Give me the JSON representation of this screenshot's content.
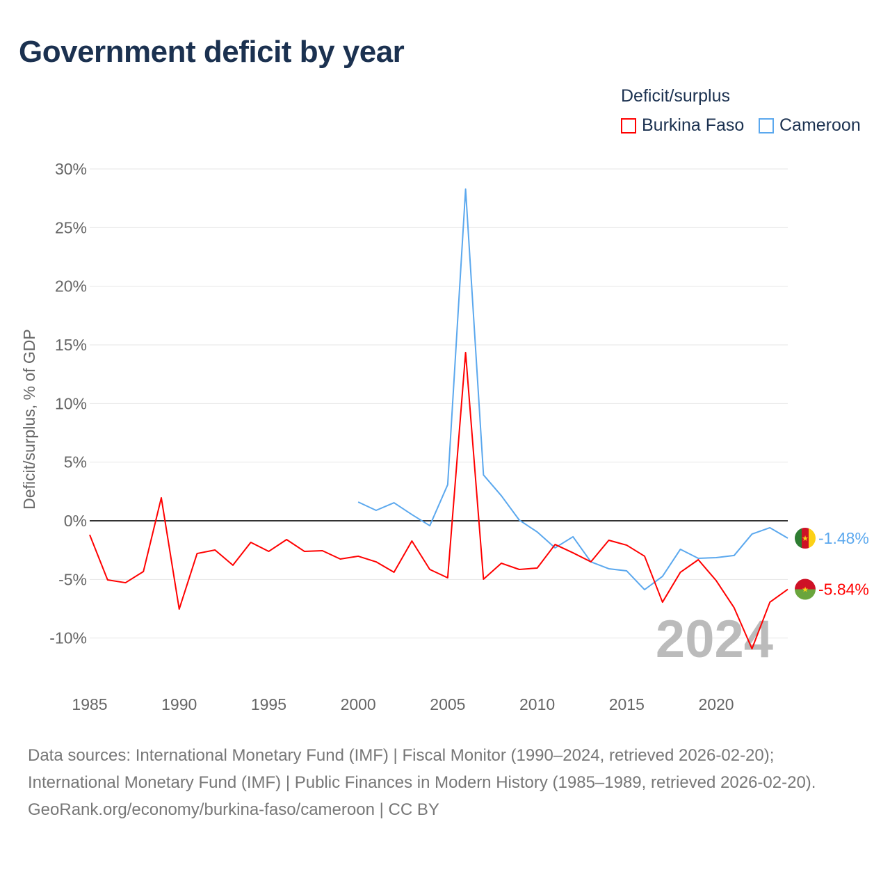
{
  "title": "Government deficit by year",
  "legend": {
    "title": "Deficit/surplus",
    "items": [
      "Burkina Faso",
      "Cameroon"
    ]
  },
  "year_watermark": "2024",
  "footer": {
    "sources": "Data sources: International Monetary Fund (IMF) | Fiscal Monitor (1990–2024, retrieved 2026-02-20); International Monetary Fund (IMF) | Public Finances in Modern History (1985–1989, retrieved 2026-02-20).",
    "credit": "GeoRank.org/economy/burkina-faso/cameroon | CC BY"
  },
  "chart_data": {
    "type": "line",
    "title": "Government deficit by year",
    "xlabel": "",
    "ylabel": "Deficit/surplus, % of GDP",
    "xlim": [
      1985,
      2024
    ],
    "ylim": [
      -13,
      30
    ],
    "yticks": [
      30,
      25,
      20,
      15,
      10,
      5,
      0,
      -5,
      -10
    ],
    "ytick_labels": [
      "30%",
      "25%",
      "20%",
      "15%",
      "10%",
      "5%",
      "0%",
      "-5%",
      "-10%"
    ],
    "xticks": [
      1985,
      1990,
      1995,
      2000,
      2005,
      2010,
      2015,
      2020
    ],
    "xtick_labels": [
      "1985",
      "1990",
      "1995",
      "2000",
      "2005",
      "2010",
      "2015",
      "2020"
    ],
    "grid": true,
    "legend_position": "top-right",
    "series": [
      {
        "name": "Burkina Faso",
        "color": "#ff0000",
        "end_label": "-5.84%",
        "x": [
          1985,
          1986,
          1987,
          1988,
          1989,
          1990,
          1991,
          1992,
          1993,
          1994,
          1995,
          1996,
          1997,
          1998,
          1999,
          2000,
          2001,
          2002,
          2003,
          2004,
          2005,
          2006,
          2007,
          2008,
          2009,
          2010,
          2011,
          2012,
          2013,
          2014,
          2015,
          2016,
          2017,
          2018,
          2019,
          2020,
          2021,
          2022,
          2023,
          2024
        ],
        "values": [
          -1.19,
          -5.04,
          -5.28,
          -4.33,
          1.96,
          -7.53,
          -2.79,
          -2.49,
          -3.79,
          -1.84,
          -2.61,
          -1.6,
          -2.61,
          -2.55,
          -3.26,
          -3.02,
          -3.5,
          -4.39,
          -1.72,
          -4.15,
          -4.86,
          14.35,
          -4.98,
          -3.62,
          -4.15,
          -4.03,
          -2.02,
          -2.73,
          -3.5,
          -1.66,
          -2.08,
          -3.02,
          -6.94,
          -4.39,
          -3.32,
          -5.1,
          -7.41,
          -10.91,
          -6.94,
          -5.84
        ]
      },
      {
        "name": "Cameroon",
        "color": "#5ba8ee",
        "end_label": "-1.48%",
        "x": [
          2000,
          2001,
          2002,
          2003,
          2004,
          2005,
          2006,
          2007,
          2008,
          2009,
          2010,
          2011,
          2012,
          2013,
          2014,
          2015,
          2016,
          2017,
          2018,
          2019,
          2020,
          2021,
          2022,
          2023,
          2024
        ],
        "values": [
          1.6,
          0.89,
          1.54,
          0.53,
          -0.42,
          3.08,
          28.28,
          3.91,
          2.13,
          0.06,
          -0.95,
          -2.31,
          -1.36,
          -3.5,
          -4.09,
          -4.27,
          -5.87,
          -4.74,
          -2.43,
          -3.2,
          -3.14,
          -2.96,
          -1.13,
          -0.59,
          -1.48
        ]
      }
    ]
  }
}
